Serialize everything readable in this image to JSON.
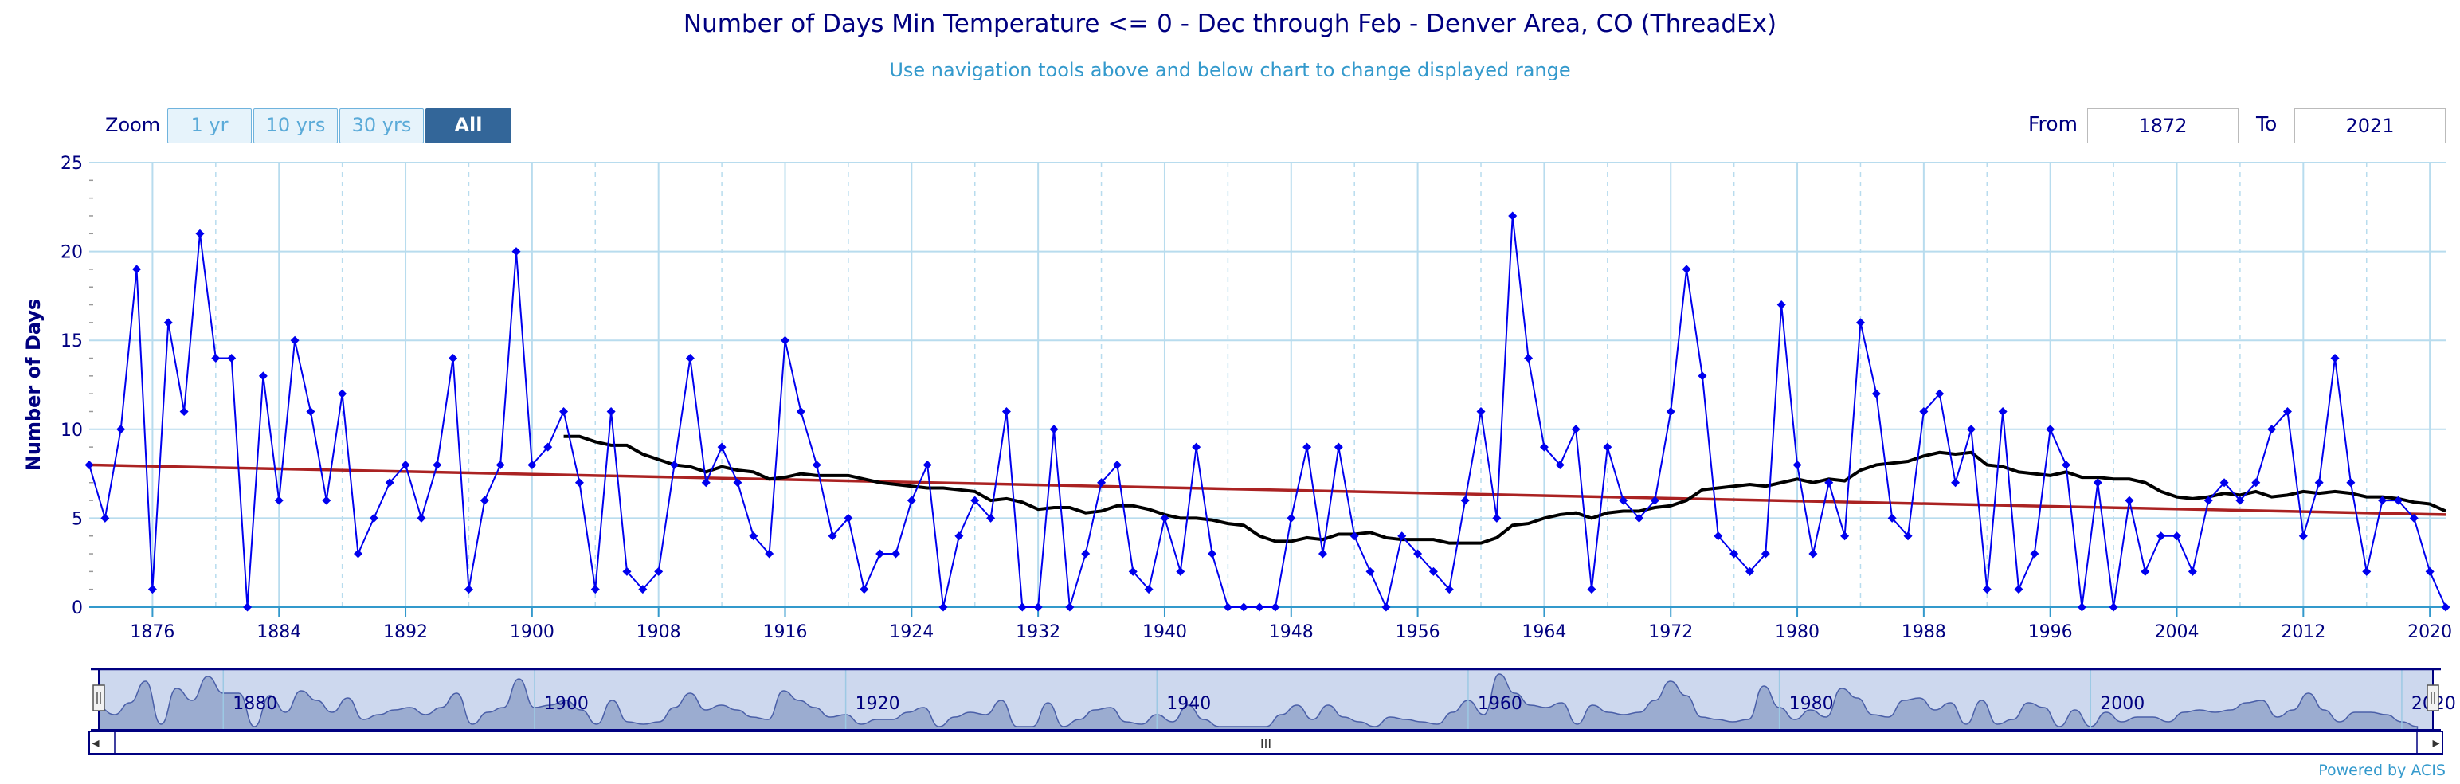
{
  "header": {
    "title": "Number of Days Min Temperature <= 0 - Dec through Feb - Denver Area, CO (ThreadEx)",
    "subtitle": "Use navigation tools above and below chart to change displayed range"
  },
  "zoom": {
    "label": "Zoom",
    "buttons": [
      "1 yr",
      "10 yrs",
      "30 yrs",
      "All"
    ],
    "active": "All"
  },
  "range": {
    "from_label": "From",
    "from_value": "1872",
    "to_label": "To",
    "to_value": "2021"
  },
  "credits": "Powered by ACIS",
  "navigator": {
    "scrollbar_grip": "III",
    "left_arrow": "◂",
    "right_arrow": "▸",
    "x_ticks": [
      "1880",
      "1900",
      "1920",
      "1940",
      "1960",
      "1980",
      "2000",
      "2020"
    ]
  },
  "colors": {
    "title": "#000080",
    "subtitle": "#3399cc",
    "series": "#0000ee",
    "moving_average": "#000000",
    "trend": "#aa2222",
    "grid": "#b8dcee",
    "navigator_fill": "#c8d4ec"
  },
  "chart_data": {
    "type": "line",
    "title": "Number of Days Min Temperature <= 0 - Dec through Feb - Denver Area, CO (ThreadEx)",
    "ylabel": "Number of Days",
    "xlabel": "",
    "xlim": [
      1872,
      2021
    ],
    "ylim": [
      0,
      25
    ],
    "x_ticks": [
      1876,
      1884,
      1892,
      1900,
      1908,
      1916,
      1924,
      1932,
      1940,
      1948,
      1956,
      1964,
      1972,
      1980,
      1988,
      1996,
      2004,
      2012,
      2020
    ],
    "y_ticks": [
      0,
      5,
      10,
      15,
      20,
      25
    ],
    "grid": true,
    "legend": "none",
    "series": [
      {
        "x": [
          1872,
          1873,
          1874,
          1875,
          1876,
          1877,
          1878,
          1879,
          1880,
          1881,
          1882,
          1883,
          1884,
          1885,
          1886,
          1887,
          1888,
          1889,
          1890,
          1891,
          1892,
          1893,
          1894,
          1895,
          1896,
          1897,
          1898,
          1899,
          1900,
          1901,
          1902,
          1903,
          1904,
          1905,
          1906,
          1907,
          1908,
          1909,
          1910,
          1911,
          1912,
          1913,
          1914,
          1915,
          1916,
          1917,
          1918,
          1919,
          1920,
          1921,
          1922,
          1923,
          1924,
          1925,
          1926,
          1927,
          1928,
          1929,
          1930,
          1931,
          1932,
          1933,
          1934,
          1935,
          1936,
          1937,
          1938,
          1939,
          1940,
          1941,
          1942,
          1943,
          1944,
          1945,
          1946,
          1947,
          1948,
          1949,
          1950,
          1951,
          1952,
          1953,
          1954,
          1955,
          1956,
          1957,
          1958,
          1959,
          1960,
          1961,
          1962,
          1963,
          1964,
          1965,
          1966,
          1967,
          1968,
          1969,
          1970,
          1971,
          1972,
          1973,
          1974,
          1975,
          1976,
          1977,
          1978,
          1979,
          1980,
          1981,
          1982,
          1983,
          1984,
          1985,
          1986,
          1987,
          1988,
          1989,
          1990,
          1991,
          1992,
          1993,
          1994,
          1995,
          1996,
          1997,
          1998,
          1999,
          2000,
          2001,
          2002,
          2003,
          2004,
          2005,
          2006,
          2007,
          2008,
          2009,
          2010,
          2011,
          2012,
          2013,
          2014,
          2015,
          2016,
          2017,
          2018,
          2019,
          2020,
          2021
        ],
        "values": [
          8,
          5,
          10,
          19,
          1,
          16,
          11,
          21,
          14,
          14,
          0,
          13,
          6,
          15,
          11,
          6,
          12,
          3,
          5,
          7,
          8,
          5,
          8,
          14,
          1,
          6,
          8,
          20,
          8,
          9,
          11,
          7,
          1,
          11,
          2,
          1,
          2,
          8,
          14,
          7,
          9,
          7,
          4,
          3,
          15,
          11,
          8,
          4,
          5,
          1,
          3,
          3,
          6,
          8,
          0,
          4,
          6,
          5,
          11,
          0,
          0,
          10,
          0,
          3,
          7,
          8,
          2,
          1,
          5,
          2,
          9,
          3,
          0,
          0,
          0,
          0,
          5,
          9,
          3,
          9,
          4,
          2,
          0,
          4,
          3,
          2,
          1,
          6,
          11,
          5,
          22,
          14,
          9,
          8,
          10,
          1,
          9,
          6,
          5,
          6,
          11,
          19,
          13,
          4,
          3,
          2,
          3,
          17,
          8,
          3,
          7,
          4,
          16,
          12,
          5,
          4,
          11,
          12,
          7,
          10,
          1,
          11,
          1,
          3,
          10,
          8,
          0,
          7,
          0,
          6,
          2,
          4,
          4,
          2,
          6,
          7,
          6,
          7,
          10,
          11,
          4,
          7,
          14,
          7,
          2,
          6,
          6,
          5,
          2,
          0
        ]
      },
      {
        "name": "moving average",
        "x": [
          1902,
          1903,
          1904,
          1905,
          1906,
          1907,
          1908,
          1909,
          1910,
          1911,
          1912,
          1913,
          1914,
          1915,
          1916,
          1917,
          1918,
          1919,
          1920,
          1921,
          1922,
          1923,
          1924,
          1925,
          1926,
          1927,
          1928,
          1929,
          1930,
          1931,
          1932,
          1933,
          1934,
          1935,
          1936,
          1937,
          1938,
          1939,
          1940,
          1941,
          1942,
          1943,
          1944,
          1945,
          1946,
          1947,
          1948,
          1949,
          1950,
          1951,
          1952,
          1953,
          1954,
          1955,
          1956,
          1957,
          1958,
          1959,
          1960,
          1961,
          1962,
          1963,
          1964,
          1965,
          1966,
          1967,
          1968,
          1969,
          1970,
          1971,
          1972,
          1973,
          1974,
          1975,
          1976,
          1977,
          1978,
          1979,
          1980,
          1981,
          1982,
          1983,
          1984,
          1985,
          1986,
          1987,
          1988,
          1989,
          1990,
          1991,
          1992,
          1993,
          1994,
          1995,
          1996,
          1997,
          1998,
          1999,
          2000,
          2001,
          2002,
          2003,
          2004,
          2005,
          2006,
          2007,
          2008,
          2009,
          2010,
          2011,
          2012,
          2013,
          2014,
          2015,
          2016,
          2017,
          2018,
          2019,
          2020,
          2021
        ],
        "values": [
          9.6,
          9.6,
          9.3,
          9.1,
          9.1,
          8.6,
          8.3,
          8.0,
          7.9,
          7.6,
          7.9,
          7.7,
          7.6,
          7.2,
          7.3,
          7.5,
          7.4,
          7.4,
          7.4,
          7.2,
          7.0,
          6.9,
          6.8,
          6.7,
          6.7,
          6.6,
          6.5,
          6.0,
          6.1,
          5.9,
          5.5,
          5.6,
          5.6,
          5.3,
          5.4,
          5.7,
          5.7,
          5.5,
          5.2,
          5.0,
          5.0,
          4.9,
          4.7,
          4.6,
          4.0,
          3.7,
          3.7,
          3.9,
          3.8,
          4.1,
          4.1,
          4.2,
          3.9,
          3.8,
          3.8,
          3.8,
          3.6,
          3.6,
          3.6,
          3.9,
          4.6,
          4.7,
          5.0,
          5.2,
          5.3,
          5.0,
          5.3,
          5.4,
          5.4,
          5.6,
          5.7,
          6.0,
          6.6,
          6.7,
          6.8,
          6.9,
          6.8,
          7.0,
          7.2,
          7.0,
          7.2,
          7.1,
          7.7,
          8.0,
          8.1,
          8.2,
          8.5,
          8.7,
          8.6,
          8.7,
          8.0,
          7.9,
          7.6,
          7.5,
          7.4,
          7.6,
          7.3,
          7.3,
          7.2,
          7.2,
          7.0,
          6.5,
          6.2,
          6.1,
          6.2,
          6.4,
          6.3,
          6.5,
          6.2,
          6.3,
          6.5,
          6.4,
          6.5,
          6.4,
          6.2,
          6.2,
          6.1,
          5.9,
          5.8,
          5.4
        ]
      },
      {
        "name": "trend",
        "x": [
          1872,
          2021
        ],
        "values": [
          8.0,
          5.2
        ]
      }
    ]
  }
}
